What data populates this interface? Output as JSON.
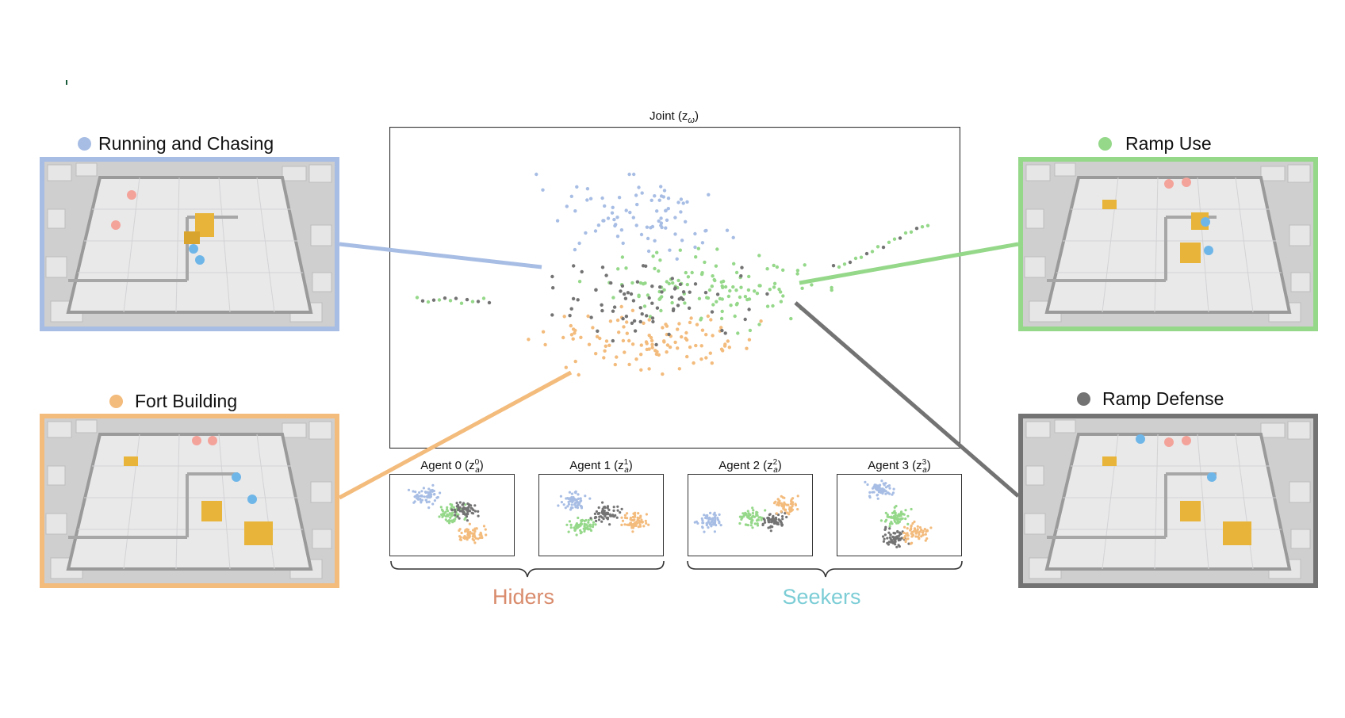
{
  "categories": [
    {
      "key": "running",
      "label": "Running and Chasing",
      "color": "#a7bde4"
    },
    {
      "key": "fort",
      "label": "Fort Building",
      "color": "#f3bb7c"
    },
    {
      "key": "ramp",
      "label": "Ramp Use",
      "color": "#95d88a"
    },
    {
      "key": "defense",
      "label": "Ramp Defense",
      "color": "#737373"
    }
  ],
  "joint_title": "Joint (z",
  "joint_title_sub": "ω",
  "agents": [
    {
      "label": "Agent 0 (z",
      "sup": "0",
      "sub": "a"
    },
    {
      "label": "Agent 1 (z",
      "sup": "1",
      "sub": "a"
    },
    {
      "label": "Agent 2 (z",
      "sup": "2",
      "sub": "a"
    },
    {
      "label": "Agent 3 (z",
      "sup": "3",
      "sub": "a"
    }
  ],
  "groups": {
    "hiders": {
      "label": "Hiders",
      "color": "#d98b6c"
    },
    "seekers": {
      "label": "Seekers",
      "color": "#7ccdd6"
    }
  },
  "icons": {
    "scene": "hide-and-seek-arena-icon"
  }
}
